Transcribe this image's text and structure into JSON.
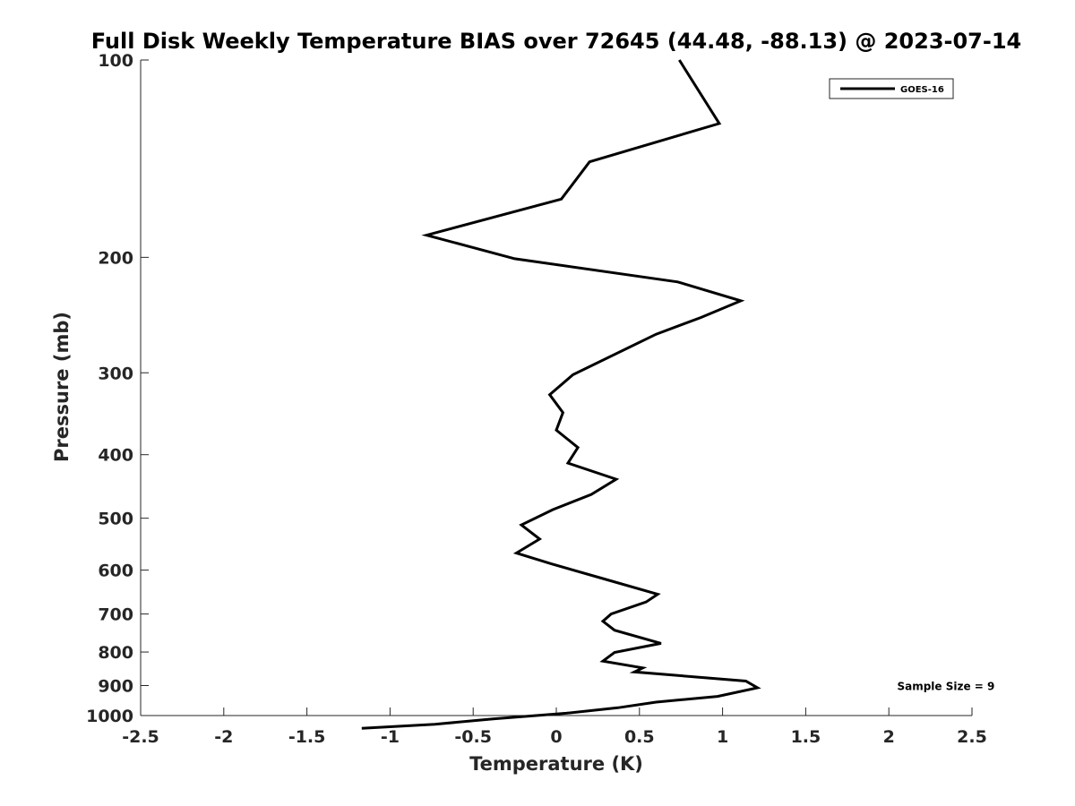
{
  "chart_data": {
    "type": "line",
    "title": "Full Disk Weekly Temperature BIAS over 72645 (44.48, -88.13) @ 2023-07-14",
    "xlabel": "Temperature (K)",
    "ylabel": "Pressure (mb)",
    "xlim": [
      -2.5,
      2.5
    ],
    "ylim": [
      1000,
      100
    ],
    "y_scale": "log",
    "x_ticks": [
      -2.5,
      -2,
      -1.5,
      -1,
      -0.5,
      0,
      0.5,
      1,
      1.5,
      2,
      2.5
    ],
    "x_tick_labels": [
      "-2.5",
      "-2",
      "-1.5",
      "-1",
      "-0.5",
      "0",
      "0.5",
      "1",
      "1.5",
      "2",
      "2.5"
    ],
    "y_ticks": [
      100,
      200,
      300,
      400,
      500,
      600,
      700,
      800,
      900,
      1000
    ],
    "y_tick_labels": [
      "100",
      "200",
      "300",
      "400",
      "500",
      "600",
      "700",
      "800",
      "900",
      "1000"
    ],
    "grid": false,
    "legend_position": "top-right",
    "series": [
      {
        "name": "GOES-16",
        "color": "#000000",
        "x": [
          0.74,
          0.98,
          0.2,
          0.03,
          -0.78,
          -0.25,
          0.73,
          1.11,
          0.87,
          0.6,
          0.1,
          -0.04,
          0.04,
          0.0,
          0.13,
          0.07,
          0.36,
          0.21,
          -0.02,
          -0.21,
          -0.1,
          -0.24,
          -0.03,
          0.27,
          0.61,
          0.54,
          0.33,
          0.28,
          0.35,
          0.63,
          0.35,
          0.28,
          0.52,
          0.47,
          1.14,
          1.21,
          0.97,
          0.6,
          0.37,
          0.06,
          -0.38,
          -0.73,
          -1.17
        ],
        "y": [
          100,
          125,
          143,
          163,
          185,
          201,
          218,
          233,
          247,
          262,
          302,
          324,
          345,
          367,
          390,
          412,
          436,
          460,
          485,
          512,
          538,
          565,
          587,
          617,
          653,
          671,
          700,
          718,
          741,
          776,
          801,
          826,
          846,
          858,
          886,
          907,
          935,
          954,
          973,
          992,
          1012,
          1031,
          1046
        ]
      }
    ],
    "annotations": [
      {
        "text": "Sample Size = 9",
        "x": 2.05,
        "y": 900
      }
    ]
  }
}
